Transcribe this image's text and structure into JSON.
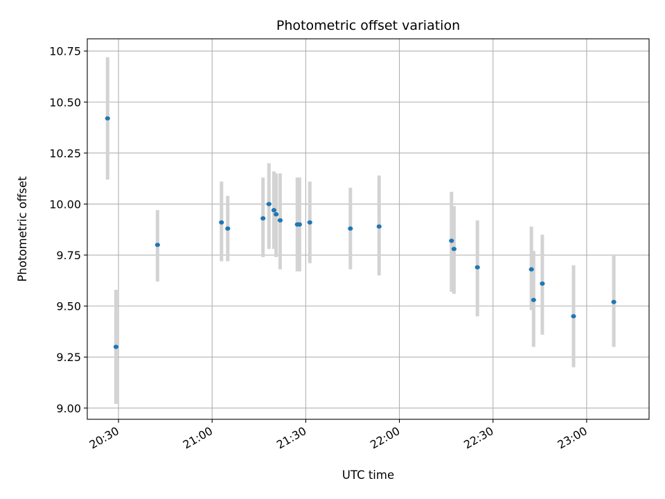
{
  "chart_data": {
    "type": "scatter",
    "title": "Photometric offset variation",
    "xlabel": "UTC time",
    "ylabel": "Photometric offset",
    "x_axis_type": "time",
    "xlim": [
      "20:20",
      "23:20"
    ],
    "ylim": [
      8.945,
      10.81
    ],
    "x_ticks": [
      "20:30",
      "21:00",
      "21:30",
      "22:00",
      "22:30",
      "23:00"
    ],
    "y_ticks": [
      "9.00",
      "9.25",
      "9.50",
      "9.75",
      "10.00",
      "10.25",
      "10.50",
      "10.75"
    ],
    "grid": true,
    "point_color": "#1f77b4",
    "errorbar_color": "#d3d3d3",
    "points": [
      {
        "x": "20:26.5",
        "y": 10.42,
        "lo": 10.12,
        "hi": 10.72
      },
      {
        "x": "20:29.2",
        "y": 9.3,
        "lo": 9.02,
        "hi": 9.58
      },
      {
        "x": "20:42.5",
        "y": 9.8,
        "lo": 9.62,
        "hi": 9.97
      },
      {
        "x": "21:03.0",
        "y": 9.91,
        "lo": 9.72,
        "hi": 10.11
      },
      {
        "x": "21:05.0",
        "y": 9.88,
        "lo": 9.72,
        "hi": 10.04
      },
      {
        "x": "21:16.3",
        "y": 9.93,
        "lo": 9.74,
        "hi": 10.13
      },
      {
        "x": "21:18.2",
        "y": 10.0,
        "lo": 9.78,
        "hi": 10.2
      },
      {
        "x": "21:19.8",
        "y": 9.97,
        "lo": 9.78,
        "hi": 10.16
      },
      {
        "x": "21:20.5",
        "y": 9.95,
        "lo": 9.74,
        "hi": 10.15
      },
      {
        "x": "21:21.8",
        "y": 9.92,
        "lo": 9.68,
        "hi": 10.15
      },
      {
        "x": "21:27.3",
        "y": 9.9,
        "lo": 9.67,
        "hi": 10.13
      },
      {
        "x": "21:28.0",
        "y": 9.9,
        "lo": 9.67,
        "hi": 10.13
      },
      {
        "x": "21:31.3",
        "y": 9.91,
        "lo": 9.71,
        "hi": 10.11
      },
      {
        "x": "21:44.3",
        "y": 9.88,
        "lo": 9.68,
        "hi": 10.08
      },
      {
        "x": "21:53.5",
        "y": 9.89,
        "lo": 9.65,
        "hi": 10.14
      },
      {
        "x": "22:16.7",
        "y": 9.82,
        "lo": 9.57,
        "hi": 10.06
      },
      {
        "x": "22:17.5",
        "y": 9.78,
        "lo": 9.56,
        "hi": 9.99
      },
      {
        "x": "22:25.0",
        "y": 9.69,
        "lo": 9.45,
        "hi": 9.92
      },
      {
        "x": "22:42.3",
        "y": 9.68,
        "lo": 9.48,
        "hi": 9.89
      },
      {
        "x": "22:43.0",
        "y": 9.53,
        "lo": 9.3,
        "hi": 9.77
      },
      {
        "x": "22:45.8",
        "y": 9.61,
        "lo": 9.36,
        "hi": 9.85
      },
      {
        "x": "22:55.8",
        "y": 9.45,
        "lo": 9.2,
        "hi": 9.7
      },
      {
        "x": "23:08.7",
        "y": 9.52,
        "lo": 9.3,
        "hi": 9.75
      }
    ]
  }
}
